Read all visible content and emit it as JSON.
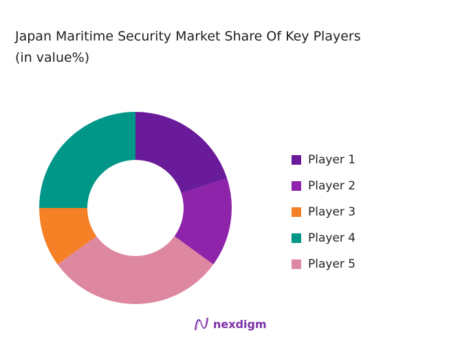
{
  "chart_data": {
    "type": "pie",
    "donut": true,
    "title": "Japan Maritime Security Market Share Of Key Players (in value%)",
    "title_lines": [
      "Japan Maritime Security Market Share Of Key Players",
      "(in value%)"
    ],
    "series": [
      {
        "name": "Player 1",
        "value": 20,
        "color": "#6a1b9a"
      },
      {
        "name": "Player 2",
        "value": 15,
        "color": "#8e24aa"
      },
      {
        "name": "Player 3",
        "value": 10,
        "color": "#f58025"
      },
      {
        "name": "Player 4",
        "value": 25,
        "color": "#009688"
      },
      {
        "name": "Player 5",
        "value": 30,
        "color": "#de87a0"
      }
    ],
    "legend_position": "right"
  },
  "brand": {
    "name": "nexdigm",
    "color": "#7b2fa8"
  }
}
